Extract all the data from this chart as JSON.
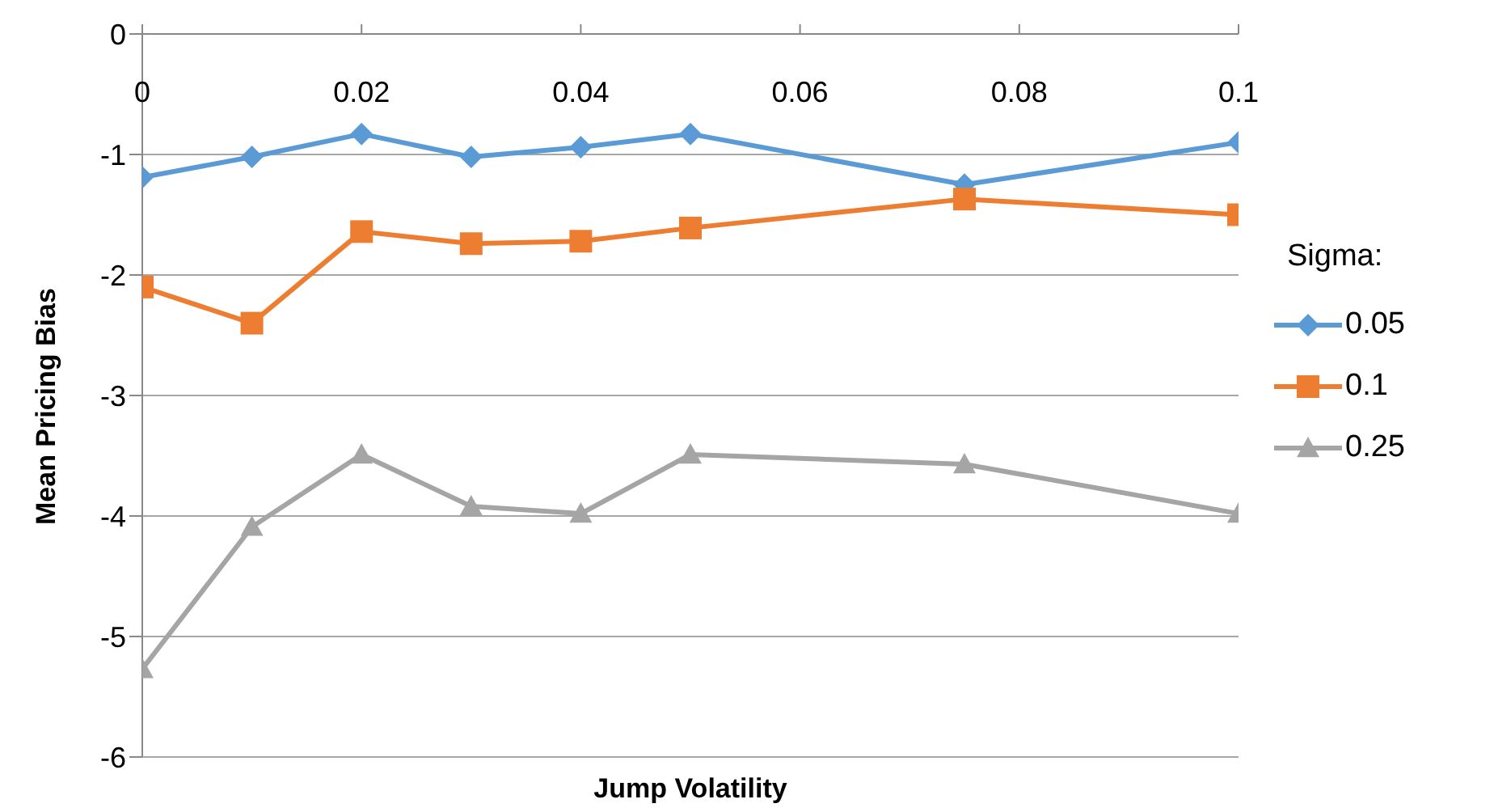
{
  "chart_data": {
    "type": "line",
    "xlabel": "Jump Volatility",
    "ylabel": "Mean Pricing Bias",
    "legend_title": "Sigma:",
    "x": [
      0,
      0.01,
      0.02,
      0.03,
      0.04,
      0.05,
      0.075,
      0.1
    ],
    "series": [
      {
        "name": "0.05",
        "color": "#5b9bd5",
        "marker": "diamond",
        "values": [
          -1.19,
          -1.02,
          -0.83,
          -1.02,
          -0.94,
          -0.83,
          -1.25,
          -0.9
        ]
      },
      {
        "name": "0.1",
        "color": "#ed7d31",
        "marker": "square",
        "values": [
          -2.1,
          -2.4,
          -1.64,
          -1.74,
          -1.72,
          -1.61,
          -1.37,
          -1.5
        ]
      },
      {
        "name": "0.25",
        "color": "#a5a5a5",
        "marker": "triangle",
        "values": [
          -5.27,
          -4.09,
          -3.49,
          -3.92,
          -3.98,
          -3.49,
          -3.57,
          -3.98
        ]
      }
    ],
    "xlim": [
      0,
      0.1
    ],
    "xticks": [
      0,
      0.02,
      0.04,
      0.06,
      0.08,
      0.1
    ],
    "ylim": [
      -6,
      0
    ],
    "yticks": [
      -6,
      -5,
      -4,
      -3,
      -2,
      -1,
      0
    ],
    "grid": "y",
    "legend": "right",
    "line_style": "solid"
  }
}
